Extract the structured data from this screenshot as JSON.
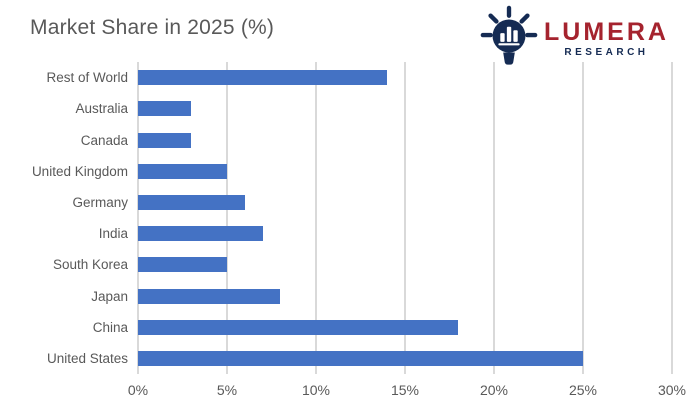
{
  "title": "Market Share in 2025 (%)",
  "logo": {
    "name": "LUMERA",
    "subtitle": "RESEARCH",
    "icon": "lightbulb-bar-chart-icon",
    "name_color": "#A5232E",
    "subtitle_color": "#152B53",
    "icon_color": "#152B53"
  },
  "chart_data": {
    "type": "bar",
    "orientation": "horizontal",
    "title": "Market Share in 2025 (%)",
    "categories": [
      "Rest of World",
      "Australia",
      "Canada",
      "United Kingdom",
      "Germany",
      "India",
      "South Korea",
      "Japan",
      "China",
      "United States"
    ],
    "values": [
      14,
      3,
      3,
      5,
      6,
      7,
      5,
      8,
      18,
      25
    ],
    "unit": "%",
    "xlabel": "",
    "ylabel": "",
    "xlim": [
      0,
      30
    ],
    "xtick_values": [
      0,
      5,
      10,
      15,
      20,
      25,
      30
    ],
    "xticks": [
      "0%",
      "5%",
      "10%",
      "15%",
      "20%",
      "25%",
      "30%"
    ],
    "grid": "vertical-gridlines",
    "legend": "none",
    "bar_color": "#4472C4",
    "gridline_color": "#D9D9D9",
    "text_color": "#595959"
  }
}
